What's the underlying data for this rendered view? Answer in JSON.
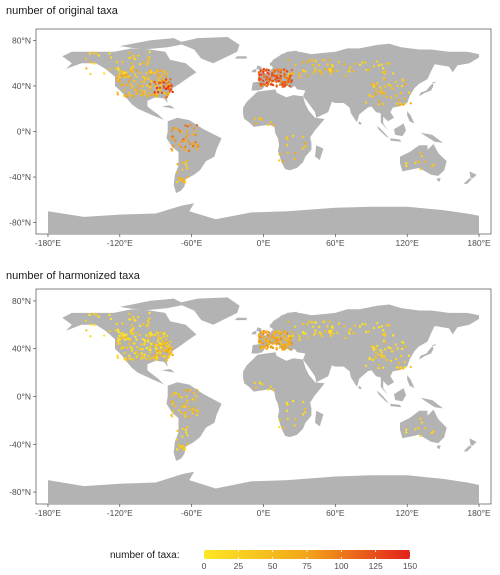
{
  "figure": {
    "colors": {
      "land": "#b3b3b3",
      "panel_border": "#333333",
      "tick_color": "#333333",
      "scale_low": "#fde725",
      "scale_mid": "#f2a51a",
      "scale_high": "#e3201b"
    }
  },
  "chart_data": [
    {
      "type": "map",
      "title": "number of original taxa",
      "x_ticks": [
        "-180°E",
        "-120°E",
        "-60°E",
        "0°E",
        "60°E",
        "120°E",
        "180°E"
      ],
      "y_ticks": [
        "80°N",
        "40°N",
        "0°N",
        "-40°N",
        "-80°N"
      ],
      "xlim": [
        -190,
        190
      ],
      "ylim": [
        -90,
        90
      ],
      "clusters": [
        {
          "lon": -100,
          "lat": 42,
          "spread_lon": 22,
          "spread_lat": 12,
          "n": 140,
          "level": 0.35
        },
        {
          "lon": -85,
          "lat": 38,
          "spread_lon": 10,
          "spread_lat": 8,
          "n": 30,
          "level": 0.8
        },
        {
          "lon": -120,
          "lat": 60,
          "spread_lon": 30,
          "spread_lat": 10,
          "n": 45,
          "level": 0.2
        },
        {
          "lon": 10,
          "lat": 47,
          "spread_lon": 14,
          "spread_lat": 8,
          "n": 120,
          "level": 0.75
        },
        {
          "lon": 40,
          "lat": 55,
          "spread_lon": 20,
          "spread_lat": 8,
          "n": 40,
          "level": 0.3
        },
        {
          "lon": -65,
          "lat": -5,
          "spread_lon": 12,
          "spread_lat": 12,
          "n": 45,
          "level": 0.55
        },
        {
          "lon": -68,
          "lat": -35,
          "spread_lon": 5,
          "spread_lat": 10,
          "n": 20,
          "level": 0.3
        },
        {
          "lon": 105,
          "lat": 35,
          "spread_lon": 20,
          "spread_lat": 12,
          "n": 50,
          "level": 0.3
        },
        {
          "lon": 80,
          "lat": 55,
          "spread_lon": 30,
          "spread_lat": 8,
          "n": 30,
          "level": 0.2
        },
        {
          "lon": 25,
          "lat": -15,
          "spread_lon": 12,
          "spread_lat": 12,
          "n": 15,
          "level": 0.3
        },
        {
          "lon": 130,
          "lat": -25,
          "spread_lon": 12,
          "spread_lat": 8,
          "n": 10,
          "level": 0.2
        },
        {
          "lon": 0,
          "lat": 10,
          "spread_lon": 10,
          "spread_lat": 5,
          "n": 8,
          "level": 0.3
        }
      ]
    },
    {
      "type": "map",
      "title": "number of harmonized taxa",
      "x_ticks": [
        "-180°E",
        "-120°E",
        "-60°E",
        "0°E",
        "60°E",
        "120°E",
        "180°E"
      ],
      "y_ticks": [
        "80°N",
        "40°N",
        "0°N",
        "-40°N",
        "-80°N"
      ],
      "xlim": [
        -190,
        190
      ],
      "ylim": [
        -90,
        90
      ],
      "clusters": [
        {
          "lon": -100,
          "lat": 42,
          "spread_lon": 22,
          "spread_lat": 12,
          "n": 140,
          "level": 0.15
        },
        {
          "lon": -85,
          "lat": 38,
          "spread_lon": 10,
          "spread_lat": 8,
          "n": 30,
          "level": 0.35
        },
        {
          "lon": -120,
          "lat": 60,
          "spread_lon": 30,
          "spread_lat": 10,
          "n": 45,
          "level": 0.1
        },
        {
          "lon": 10,
          "lat": 47,
          "spread_lon": 14,
          "spread_lat": 8,
          "n": 120,
          "level": 0.45
        },
        {
          "lon": 40,
          "lat": 55,
          "spread_lon": 20,
          "spread_lat": 8,
          "n": 40,
          "level": 0.15
        },
        {
          "lon": -65,
          "lat": -5,
          "spread_lon": 12,
          "spread_lat": 12,
          "n": 45,
          "level": 0.3
        },
        {
          "lon": -68,
          "lat": -35,
          "spread_lon": 5,
          "spread_lat": 10,
          "n": 20,
          "level": 0.15
        },
        {
          "lon": 105,
          "lat": 35,
          "spread_lon": 20,
          "spread_lat": 12,
          "n": 50,
          "level": 0.15
        },
        {
          "lon": 80,
          "lat": 55,
          "spread_lon": 30,
          "spread_lat": 8,
          "n": 30,
          "level": 0.1
        },
        {
          "lon": 25,
          "lat": -15,
          "spread_lon": 12,
          "spread_lat": 12,
          "n": 15,
          "level": 0.15
        },
        {
          "lon": 130,
          "lat": -25,
          "spread_lon": 12,
          "spread_lat": 8,
          "n": 10,
          "level": 0.1
        },
        {
          "lon": 0,
          "lat": 10,
          "spread_lon": 10,
          "spread_lat": 5,
          "n": 8,
          "level": 0.15
        }
      ]
    }
  ],
  "legend": {
    "title": "number of taxa:",
    "min": 0,
    "max": 150,
    "ticks": [
      "0",
      "25",
      "50",
      "75",
      "100",
      "125",
      "150"
    ]
  }
}
